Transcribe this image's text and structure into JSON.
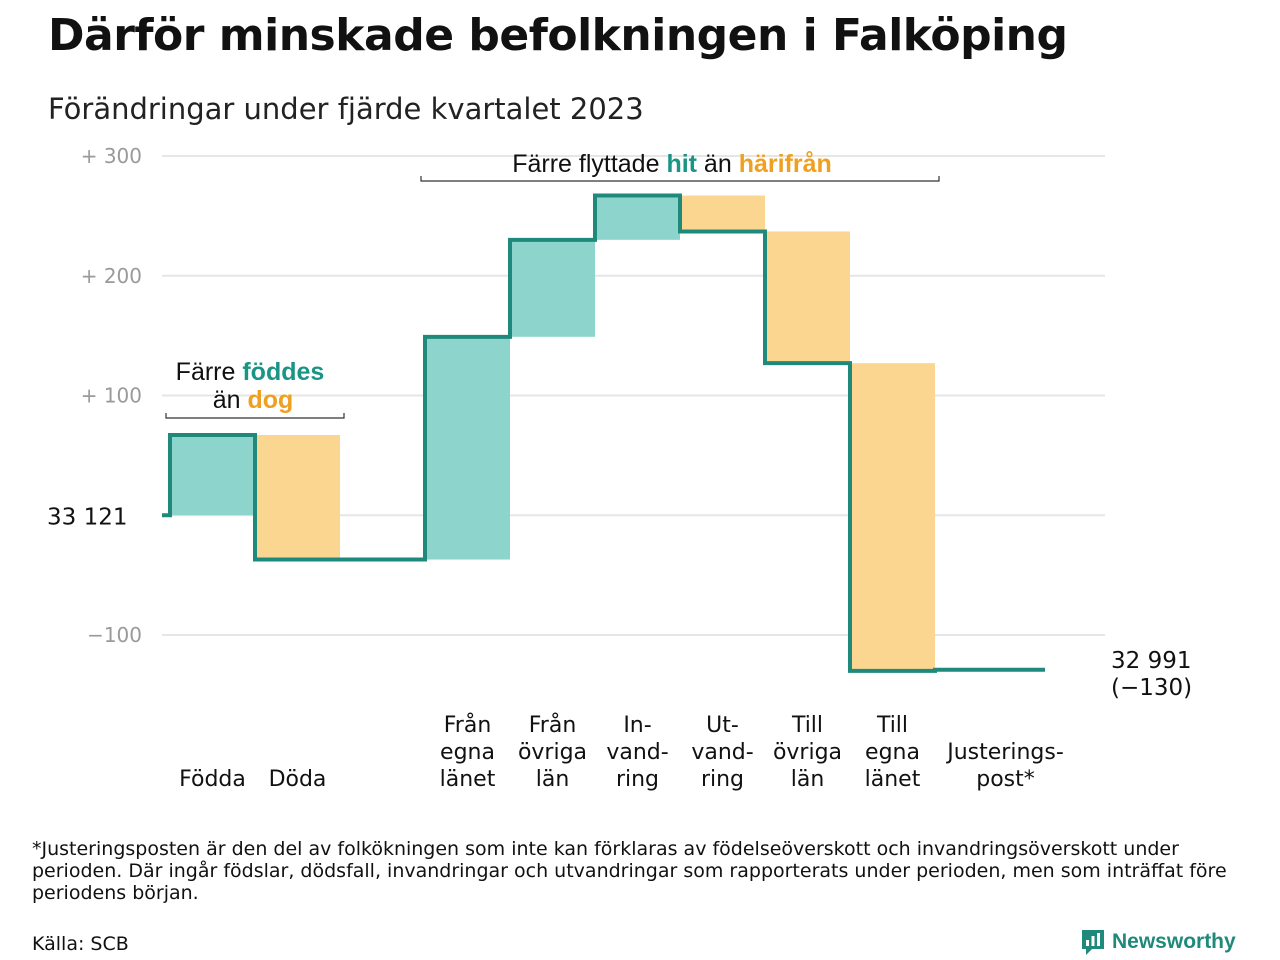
{
  "header": {
    "title": "Därför minskade befolkningen i Falköping",
    "subtitle": "Förändringar under fjärde kvartalet 2023"
  },
  "colors": {
    "teal_line": "#1f8a7c",
    "teal_fill": "#8dd5cc",
    "orange_fill": "#fbd690",
    "teal_text": "#1a9485",
    "orange_text": "#f0a020",
    "grid": "#e6e6e6",
    "tick": "#9a9a9a"
  },
  "chart_data": {
    "type": "waterfall",
    "start_value": 33121,
    "end_value": 32991,
    "start_label": "33  121",
    "end_label": "32 991",
    "end_change_label": "(−130)",
    "ylim": [
      -140,
      300
    ],
    "yticks": [
      {
        "value": 300,
        "label": "+  300"
      },
      {
        "value": 200,
        "label": "+  200"
      },
      {
        "value": 100,
        "label": "+  100"
      },
      {
        "value": 0,
        "label": ""
      },
      {
        "value": -100,
        "label": "−100"
      }
    ],
    "steps": [
      {
        "category": "Födda",
        "lines": [
          "Födda"
        ],
        "change": 67,
        "kind": "increase"
      },
      {
        "category": "Döda",
        "lines": [
          "Döda"
        ],
        "change": -104,
        "kind": "decrease"
      },
      {
        "category": "",
        "lines": [],
        "change": 0,
        "kind": "gap"
      },
      {
        "category": "Från egna länet",
        "lines": [
          "Från",
          "egna",
          "länet"
        ],
        "change": 186,
        "kind": "increase"
      },
      {
        "category": "Från övriga län",
        "lines": [
          "Från",
          "övriga",
          "län"
        ],
        "change": 81,
        "kind": "increase"
      },
      {
        "category": "In-vand-ring",
        "lines": [
          "In-",
          "vand-",
          "ring"
        ],
        "change": 37,
        "kind": "increase"
      },
      {
        "category": "Ut-vand-ring",
        "lines": [
          "Ut-",
          "vand-",
          "ring"
        ],
        "change": -30,
        "kind": "decrease"
      },
      {
        "category": "Till övriga län",
        "lines": [
          "Till",
          "övriga",
          "län"
        ],
        "change": -110,
        "kind": "decrease"
      },
      {
        "category": "Till egna länet",
        "lines": [
          "Till",
          "egna",
          "länet"
        ],
        "change": -257,
        "kind": "decrease"
      },
      {
        "category": "Justeringspost*",
        "lines": [
          "Justerings-",
          "post*"
        ],
        "change": 1,
        "kind": "adjustment"
      }
    ],
    "annotations": [
      {
        "id": "births",
        "segments": [
          [
            {
              "text": "Färre ",
              "color": "default"
            },
            {
              "text": "föddes",
              "color": "teal"
            }
          ],
          [
            {
              "text": "än ",
              "color": "default"
            },
            {
              "text": "dog",
              "color": "orange"
            }
          ]
        ]
      },
      {
        "id": "moves",
        "segments": [
          [
            {
              "text": "Färre flyttade ",
              "color": "default"
            },
            {
              "text": "hit",
              "color": "teal"
            },
            {
              "text": " än ",
              "color": "default"
            },
            {
              "text": "härifrån",
              "color": "orange"
            }
          ]
        ]
      }
    ]
  },
  "footer": {
    "note": "*Justeringsposten är den del av folkökningen som inte kan förklaras av födelseöverskott och invandringsöverskott under perioden. Där ingår födslar, dödsfall, invandringar och utvandringar som rapporterats under perioden, men som inträffat före periodens början.",
    "source": "Källa: SCB",
    "brand": "Newsworthy"
  }
}
